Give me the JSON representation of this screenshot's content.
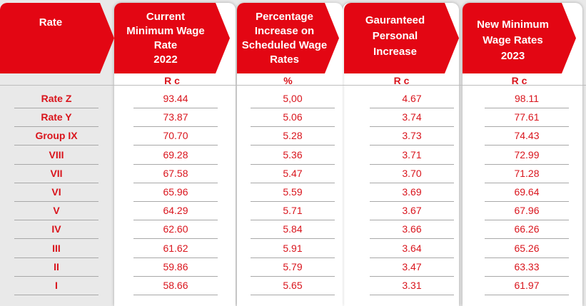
{
  "columns": [
    {
      "key": "rate",
      "header": "Rate",
      "unit": ""
    },
    {
      "key": "current",
      "header": "Current\nMinimum Wage\nRate\n2022",
      "unit": "R c"
    },
    {
      "key": "pct",
      "header": "Percentage\nIncrease on\nScheduled Wage\nRates",
      "unit": "%"
    },
    {
      "key": "personal",
      "header": "Gauranteed\nPersonal\nIncrease",
      "unit": "R c"
    },
    {
      "key": "new",
      "header": "New Minimum\nWage Rates\n2023",
      "unit": "R c"
    }
  ],
  "rows": [
    {
      "rate": "Rate Z",
      "current": "93.44",
      "pct": "5,00",
      "personal": "4.67",
      "new": "98.11"
    },
    {
      "rate": "Rate Y",
      "current": "73.87",
      "pct": "5.06",
      "personal": "3.74",
      "new": "77.61"
    },
    {
      "rate": "Group IX",
      "current": "70.70",
      "pct": "5.28",
      "personal": "3.73",
      "new": "74.43"
    },
    {
      "rate": "VIII",
      "current": "69.28",
      "pct": "5.36",
      "personal": "3.71",
      "new": "72.99"
    },
    {
      "rate": "VII",
      "current": "67.58",
      "pct": "5.47",
      "personal": "3.70",
      "new": "71.28"
    },
    {
      "rate": "VI",
      "current": "65.96",
      "pct": "5.59",
      "personal": "3.69",
      "new": "69.64"
    },
    {
      "rate": "V",
      "current": "64.29",
      "pct": "5.71",
      "personal": "3.67",
      "new": "67.96"
    },
    {
      "rate": "IV",
      "current": "62.60",
      "pct": "5.84",
      "personal": "3.66",
      "new": "66.26"
    },
    {
      "rate": "III",
      "current": "61.62",
      "pct": "5.91",
      "personal": "3.64",
      "new": "65.26"
    },
    {
      "rate": "II",
      "current": "59.86",
      "pct": "5.79",
      "personal": "3.47",
      "new": "63.33"
    },
    {
      "rate": "I",
      "current": "58.66",
      "pct": "5.65",
      "personal": "3.31",
      "new": "61.97"
    }
  ]
}
